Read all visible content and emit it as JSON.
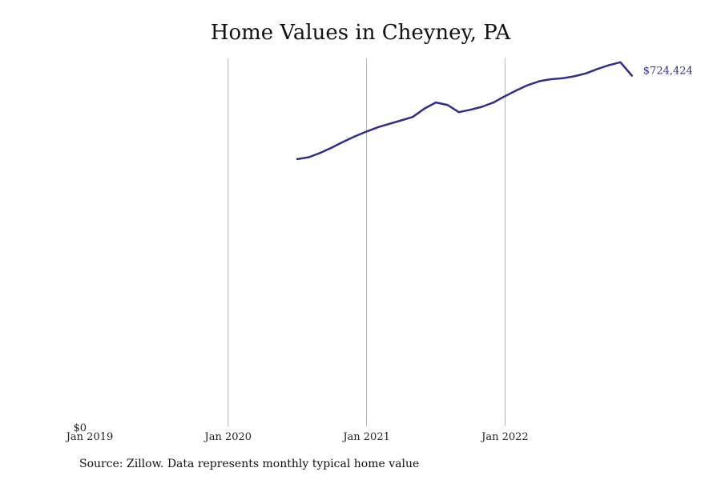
{
  "chart_data": {
    "type": "line",
    "title": "Home Values in Cheyney, PA",
    "xlabel": "",
    "ylabel": "",
    "x_ticks": [
      "Jan 2019",
      "Jan 2020",
      "Jan 2021",
      "Jan 2022"
    ],
    "y_ticks": [
      "$0"
    ],
    "xlim": [
      "2019-01",
      "2023-02"
    ],
    "ylim": [
      0,
      724424
    ],
    "grid": "vertical",
    "series": [
      {
        "color": "#2e2e8a",
        "end_label": "$724,424",
        "x": [
          "2020-07",
          "2020-08",
          "2020-09",
          "2020-10",
          "2020-11",
          "2020-12",
          "2021-01",
          "2021-02",
          "2021-03",
          "2021-04",
          "2021-05",
          "2021-06",
          "2021-07",
          "2021-08",
          "2021-09",
          "2021-10",
          "2021-11",
          "2021-12",
          "2022-01",
          "2022-02",
          "2022-03",
          "2022-04",
          "2022-05",
          "2022-06",
          "2022-07",
          "2022-08",
          "2022-09",
          "2022-10",
          "2022-11",
          "2022-12"
        ],
        "values": [
          552000,
          556000,
          565000,
          576000,
          588000,
          599000,
          609000,
          618000,
          625000,
          632000,
          639000,
          656000,
          669000,
          664000,
          649000,
          654000,
          660000,
          669000,
          682000,
          694000,
          705000,
          713000,
          717000,
          719000,
          723000,
          729000,
          738000,
          746000,
          752000,
          724424
        ]
      }
    ]
  },
  "source_note": "Source: Zillow. Data represents monthly typical home value"
}
